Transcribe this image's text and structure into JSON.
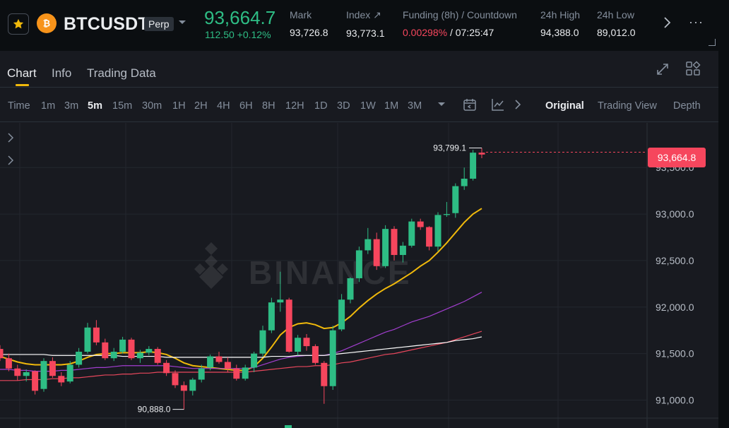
{
  "header": {
    "symbol": "BTCUSDT",
    "contract_type": "Perp",
    "last_price": "93,664.7",
    "price_change": "112.50 +0.12%",
    "mark_label": "Mark",
    "mark_value": "93,726.8",
    "index_label": "Index ↗",
    "index_value": "93,773.1",
    "funding_label": "Funding (8h) / Countdown",
    "funding_rate": "0.00298%",
    "funding_countdown": "/ 07:25:47",
    "high_label": "24h High",
    "high_value": "94,388.0",
    "low_label": "24h Low",
    "low_value": "89,012.0",
    "more_label": "···"
  },
  "tabs": [
    "Chart",
    "Info",
    "Trading Data"
  ],
  "timeframes": [
    "Time",
    "1m",
    "3m",
    "5m",
    "15m",
    "30m",
    "1H",
    "2H",
    "4H",
    "6H",
    "8H",
    "12H",
    "1D",
    "3D",
    "1W",
    "1M",
    "3M"
  ],
  "active_timeframe": "5m",
  "views": [
    "Original",
    "Trading View",
    "Depth"
  ],
  "active_view": "Original",
  "chart": {
    "current_price_label": "93,664.8",
    "watermark": "BINANCE",
    "high_marker": "93,799.1",
    "low_marker": "90,888.0"
  },
  "colors": {
    "up": "#2ebd85",
    "down": "#f6465d",
    "accent": "#f0b90b",
    "ma_fast": "#f0b90b",
    "ma_mid": "#a23ecf",
    "ma_slow": "#e8475c",
    "ma_long": "#ffffff"
  },
  "chart_data": {
    "type": "candlestick",
    "interval": "5m",
    "y_axis_ticks": [
      "93,500.0",
      "93,000.0",
      "92,500.0",
      "92,000.0",
      "91,500.0",
      "91,000.0"
    ],
    "ylim": [
      90700,
      93980
    ],
    "last_price": 93664.8,
    "candles": [
      [
        91550,
        91590,
        91420,
        91450
      ],
      [
        91450,
        91500,
        91310,
        91340
      ],
      [
        91340,
        91380,
        91210,
        91260
      ],
      [
        91260,
        91330,
        91200,
        91300
      ],
      [
        91310,
        91320,
        91060,
        91100
      ],
      [
        91120,
        91450,
        91090,
        91420
      ],
      [
        91420,
        91460,
        91240,
        91260
      ],
      [
        91260,
        91300,
        91150,
        91190
      ],
      [
        91200,
        91420,
        91180,
        91380
      ],
      [
        91380,
        91560,
        91350,
        91520
      ],
      [
        91520,
        91830,
        91500,
        91780
      ],
      [
        91780,
        91860,
        91590,
        91620
      ],
      [
        91620,
        91660,
        91430,
        91450
      ],
      [
        91450,
        91560,
        91420,
        91520
      ],
      [
        91520,
        91680,
        91500,
        91650
      ],
      [
        91650,
        91670,
        91430,
        91450
      ],
      [
        91450,
        91540,
        91400,
        91510
      ],
      [
        91510,
        91580,
        91480,
        91550
      ],
      [
        91550,
        91570,
        91380,
        91400
      ],
      [
        91400,
        91430,
        91260,
        91290
      ],
      [
        91290,
        91320,
        91130,
        91160
      ],
      [
        91160,
        91200,
        90900,
        91100
      ],
      [
        91100,
        91240,
        91050,
        91220
      ],
      [
        91220,
        91380,
        91190,
        91340
      ],
      [
        91350,
        91490,
        91320,
        91470
      ],
      [
        91470,
        91520,
        91390,
        91410
      ],
      [
        91410,
        91460,
        91300,
        91340
      ],
      [
        91340,
        91380,
        91210,
        91230
      ],
      [
        91230,
        91380,
        91210,
        91350
      ],
      [
        91350,
        91520,
        91300,
        91500
      ],
      [
        91500,
        91800,
        91470,
        91750
      ],
      [
        91750,
        92100,
        91720,
        92050
      ],
      [
        92050,
        92380,
        91950,
        92080
      ],
      [
        92080,
        92100,
        91510,
        91520
      ],
      [
        91520,
        91700,
        91480,
        91670
      ],
      [
        91670,
        91710,
        91530,
        91580
      ],
      [
        91580,
        91600,
        91380,
        91400
      ],
      [
        91400,
        91420,
        90960,
        91150
      ],
      [
        91150,
        91800,
        91110,
        91750
      ],
      [
        91760,
        92140,
        91740,
        92080
      ],
      [
        92080,
        92320,
        92040,
        92310
      ],
      [
        92310,
        92650,
        92270,
        92610
      ],
      [
        92610,
        92850,
        92570,
        92730
      ],
      [
        92730,
        92800,
        92400,
        92440
      ],
      [
        92440,
        92880,
        92420,
        92840
      ],
      [
        92840,
        92870,
        92500,
        92560
      ],
      [
        92560,
        92700,
        92480,
        92660
      ],
      [
        92660,
        92950,
        92640,
        92920
      ],
      [
        92920,
        92950,
        92830,
        92860
      ],
      [
        92860,
        92870,
        92610,
        92650
      ],
      [
        92650,
        93020,
        92600,
        92990
      ],
      [
        92990,
        93130,
        92970,
        93000
      ],
      [
        93010,
        93330,
        92960,
        93300
      ],
      [
        93300,
        93500,
        93260,
        93380
      ],
      [
        93380,
        93690,
        93360,
        93660
      ],
      [
        93660,
        93710,
        93600,
        93640
      ]
    ],
    "moving_averages": [
      {
        "color": "#f0b90b",
        "values": [
          91470,
          91440,
          91410,
          91390,
          91380,
          91380,
          91380,
          91380,
          91390,
          91420,
          91460,
          91490,
          91500,
          91500,
          91510,
          91510,
          91510,
          91520,
          91510,
          91490,
          91450,
          91400,
          91370,
          91360,
          91350,
          91340,
          91330,
          91320,
          91320,
          91360,
          91450,
          91570,
          91700,
          91780,
          91820,
          91830,
          91810,
          91770,
          91780,
          91830,
          91900,
          91990,
          92070,
          92140,
          92200,
          92250,
          92310,
          92370,
          92440,
          92500,
          92590,
          92690,
          92800,
          92910,
          93000,
          93060
        ]
      },
      {
        "color": "#a23ecf",
        "values": [
          91330,
          91330,
          91320,
          91320,
          91310,
          91310,
          91310,
          91320,
          91320,
          91330,
          91340,
          91350,
          91350,
          91360,
          91370,
          91370,
          91370,
          91370,
          91370,
          91370,
          91360,
          91350,
          91340,
          91340,
          91340,
          91340,
          91340,
          91340,
          91340,
          91350,
          91380,
          91410,
          91440,
          91460,
          91470,
          91480,
          91480,
          91480,
          91500,
          91530,
          91570,
          91610,
          91650,
          91690,
          91730,
          91760,
          91800,
          91840,
          91870,
          91900,
          91940,
          91980,
          92020,
          92060,
          92110,
          92160
        ]
      },
      {
        "color": "#e8475c",
        "values": [
          91210,
          91210,
          91210,
          91220,
          91220,
          91220,
          91230,
          91230,
          91240,
          91240,
          91250,
          91260,
          91270,
          91270,
          91280,
          91280,
          91290,
          91290,
          91300,
          91300,
          91300,
          91300,
          91300,
          91300,
          91300,
          91300,
          91300,
          91300,
          91300,
          91310,
          91320,
          91330,
          91340,
          91350,
          91360,
          91360,
          91370,
          91370,
          91380,
          91400,
          91410,
          91430,
          91450,
          91470,
          91490,
          91500,
          91520,
          91540,
          91560,
          91580,
          91600,
          91620,
          91650,
          91680,
          91710,
          91740
        ]
      },
      {
        "color": "#ffffff",
        "values": [
          91490,
          91490,
          91490,
          91490,
          91490,
          91490,
          91480,
          91480,
          91480,
          91480,
          91480,
          91480,
          91480,
          91480,
          91470,
          91470,
          91470,
          91470,
          91470,
          91460,
          91460,
          91460,
          91460,
          91460,
          91460,
          91460,
          91460,
          91460,
          91460,
          91460,
          91460,
          91470,
          91470,
          91470,
          91480,
          91480,
          91480,
          91480,
          91490,
          91500,
          91510,
          91520,
          91530,
          91540,
          91550,
          91560,
          91570,
          91580,
          91590,
          91600,
          91610,
          91620,
          91640,
          91650,
          91660,
          91680
        ]
      }
    ]
  }
}
